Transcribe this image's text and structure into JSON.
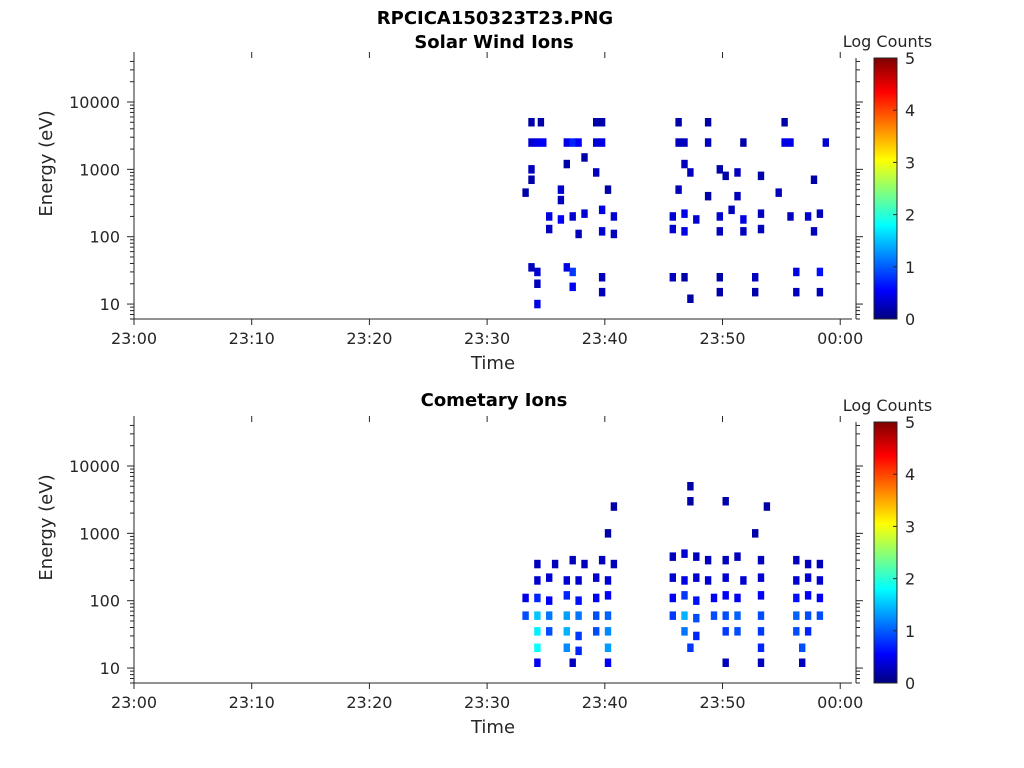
{
  "figure": {
    "title": "RPCICA150323T23.PNG"
  },
  "chart_data": [
    {
      "type": "heatmap",
      "title": "Solar Wind Ions",
      "xlabel": "Time",
      "ylabel": "Energy (eV)",
      "x_ticks": [
        "23:00",
        "23:10",
        "23:20",
        "23:30",
        "23:40",
        "23:50",
        "00:00"
      ],
      "xlim_minutes": [
        0,
        61
      ],
      "y_scale": "log",
      "y_ticks": [
        "10",
        "100",
        "1000",
        "10000"
      ],
      "ylim": [
        6,
        45000
      ],
      "colorbar": {
        "label": "Log Counts",
        "range": [
          0,
          5
        ],
        "ticks": [
          "0",
          "1",
          "2",
          "3",
          "4",
          "5"
        ],
        "colormap": "jet"
      },
      "cells": [
        [
          33.5,
          5000,
          0.2
        ],
        [
          34.3,
          5000,
          0.2
        ],
        [
          33.5,
          2500,
          0.4
        ],
        [
          34.0,
          2500,
          0.5
        ],
        [
          34.5,
          2500,
          0.6
        ],
        [
          36.5,
          2500,
          0.5
        ],
        [
          37.0,
          2500,
          0.8
        ],
        [
          37.5,
          2500,
          0.6
        ],
        [
          39.0,
          5000,
          0.2
        ],
        [
          39.5,
          5000,
          0.2
        ],
        [
          39.0,
          2500,
          0.4
        ],
        [
          39.5,
          2500,
          0.5
        ],
        [
          46.0,
          5000,
          0.2
        ],
        [
          46.0,
          2500,
          0.3
        ],
        [
          46.5,
          2500,
          0.3
        ],
        [
          48.5,
          5000,
          0.2
        ],
        [
          48.5,
          2500,
          0.3
        ],
        [
          51.5,
          2500,
          0.2
        ],
        [
          55.0,
          5000,
          0.2
        ],
        [
          55.0,
          2500,
          0.5
        ],
        [
          55.5,
          2500,
          0.5
        ],
        [
          58.5,
          2500,
          0.4
        ],
        [
          33.5,
          1000,
          0.3
        ],
        [
          33.5,
          700,
          0.2
        ],
        [
          36.5,
          1200,
          0.2
        ],
        [
          38.0,
          1500,
          0.2
        ],
        [
          39.0,
          900,
          0.3
        ],
        [
          46.5,
          1200,
          0.3
        ],
        [
          47.0,
          900,
          0.3
        ],
        [
          49.5,
          1000,
          0.2
        ],
        [
          50.0,
          800,
          0.2
        ],
        [
          51.0,
          900,
          0.3
        ],
        [
          53.0,
          800,
          0.2
        ],
        [
          57.5,
          700,
          0.2
        ],
        [
          33.0,
          450,
          0.2
        ],
        [
          36.0,
          500,
          0.4
        ],
        [
          36.0,
          350,
          0.3
        ],
        [
          40.0,
          500,
          0.2
        ],
        [
          46.0,
          500,
          0.3
        ],
        [
          48.5,
          400,
          0.2
        ],
        [
          51.0,
          400,
          0.3
        ],
        [
          54.5,
          450,
          0.3
        ],
        [
          35.0,
          200,
          0.5
        ],
        [
          36.0,
          180,
          0.6
        ],
        [
          37.0,
          200,
          0.4
        ],
        [
          38.0,
          220,
          0.4
        ],
        [
          39.5,
          250,
          0.5
        ],
        [
          40.5,
          200,
          0.4
        ],
        [
          45.5,
          200,
          0.4
        ],
        [
          46.5,
          220,
          0.5
        ],
        [
          47.5,
          180,
          0.4
        ],
        [
          49.5,
          200,
          0.4
        ],
        [
          50.5,
          250,
          0.3
        ],
        [
          51.5,
          180,
          0.5
        ],
        [
          53.0,
          220,
          0.3
        ],
        [
          55.5,
          200,
          0.3
        ],
        [
          57.0,
          200,
          0.4
        ],
        [
          58.0,
          220,
          0.3
        ],
        [
          35.0,
          130,
          0.3
        ],
        [
          37.5,
          110,
          0.3
        ],
        [
          39.5,
          120,
          0.4
        ],
        [
          40.5,
          110,
          0.3
        ],
        [
          45.5,
          130,
          0.4
        ],
        [
          46.5,
          120,
          0.5
        ],
        [
          49.5,
          120,
          0.3
        ],
        [
          51.5,
          120,
          0.3
        ],
        [
          53.0,
          130,
          0.3
        ],
        [
          57.5,
          120,
          0.3
        ],
        [
          33.5,
          35,
          0.3
        ],
        [
          34.0,
          30,
          0.4
        ],
        [
          34.0,
          20,
          0.3
        ],
        [
          34.0,
          10,
          0.5
        ],
        [
          36.5,
          35,
          0.5
        ],
        [
          37.0,
          30,
          0.9
        ],
        [
          37.0,
          18,
          0.6
        ],
        [
          39.5,
          25,
          0.3
        ],
        [
          39.5,
          15,
          0.3
        ],
        [
          45.5,
          25,
          0.3
        ],
        [
          46.5,
          25,
          0.2
        ],
        [
          47.0,
          12,
          0.2
        ],
        [
          49.5,
          25,
          0.2
        ],
        [
          49.5,
          15,
          0.2
        ],
        [
          52.5,
          25,
          0.3
        ],
        [
          52.5,
          15,
          0.2
        ],
        [
          56.0,
          30,
          0.5
        ],
        [
          56.0,
          15,
          0.3
        ],
        [
          58.0,
          30,
          0.7
        ],
        [
          58.0,
          15,
          0.3
        ]
      ]
    },
    {
      "type": "heatmap",
      "title": "Cometary Ions",
      "xlabel": "Time",
      "ylabel": "Energy (eV)",
      "x_ticks": [
        "23:00",
        "23:10",
        "23:20",
        "23:30",
        "23:40",
        "23:50",
        "00:00"
      ],
      "xlim_minutes": [
        0,
        61
      ],
      "y_scale": "log",
      "y_ticks": [
        "10",
        "100",
        "1000",
        "10000"
      ],
      "ylim": [
        6,
        45000
      ],
      "colorbar": {
        "label": "Log Counts",
        "range": [
          0,
          5
        ],
        "ticks": [
          "0",
          "1",
          "2",
          "3",
          "4",
          "5"
        ],
        "colormap": "jet"
      },
      "cells": [
        [
          40.5,
          2500,
          0.2
        ],
        [
          47.0,
          5000,
          0.2
        ],
        [
          47.0,
          3000,
          0.2
        ],
        [
          50.0,
          3000,
          0.2
        ],
        [
          53.5,
          2500,
          0.2
        ],
        [
          40.0,
          1000,
          0.2
        ],
        [
          52.5,
          1000,
          0.2
        ],
        [
          34.0,
          350,
          0.3
        ],
        [
          35.5,
          350,
          0.3
        ],
        [
          37.0,
          400,
          0.3
        ],
        [
          38.0,
          350,
          0.3
        ],
        [
          39.5,
          400,
          0.3
        ],
        [
          40.5,
          350,
          0.3
        ],
        [
          45.5,
          450,
          0.3
        ],
        [
          46.5,
          500,
          0.4
        ],
        [
          47.5,
          450,
          0.3
        ],
        [
          48.5,
          400,
          0.3
        ],
        [
          50.0,
          400,
          0.3
        ],
        [
          51.0,
          450,
          0.3
        ],
        [
          53.0,
          400,
          0.3
        ],
        [
          56.0,
          400,
          0.3
        ],
        [
          57.0,
          350,
          0.3
        ],
        [
          58.0,
          350,
          0.3
        ],
        [
          34.0,
          200,
          0.4
        ],
        [
          35.0,
          220,
          0.4
        ],
        [
          36.5,
          200,
          0.4
        ],
        [
          37.5,
          200,
          0.4
        ],
        [
          39.0,
          220,
          0.4
        ],
        [
          40.0,
          200,
          0.4
        ],
        [
          45.5,
          220,
          0.4
        ],
        [
          46.5,
          200,
          0.5
        ],
        [
          47.5,
          220,
          0.4
        ],
        [
          48.5,
          200,
          0.4
        ],
        [
          50.0,
          220,
          0.4
        ],
        [
          51.5,
          200,
          0.4
        ],
        [
          53.0,
          220,
          0.4
        ],
        [
          56.0,
          200,
          0.4
        ],
        [
          57.0,
          220,
          0.4
        ],
        [
          58.0,
          200,
          0.4
        ],
        [
          33.0,
          110,
          0.5
        ],
        [
          34.0,
          110,
          0.8
        ],
        [
          35.0,
          100,
          0.6
        ],
        [
          36.5,
          120,
          0.8
        ],
        [
          37.5,
          100,
          0.7
        ],
        [
          39.0,
          110,
          0.6
        ],
        [
          40.0,
          120,
          0.6
        ],
        [
          45.5,
          110,
          0.6
        ],
        [
          46.5,
          120,
          0.9
        ],
        [
          47.5,
          100,
          0.7
        ],
        [
          49.0,
          110,
          0.6
        ],
        [
          50.0,
          120,
          0.6
        ],
        [
          51.0,
          110,
          0.6
        ],
        [
          53.0,
          120,
          0.6
        ],
        [
          56.0,
          110,
          0.7
        ],
        [
          57.0,
          120,
          0.6
        ],
        [
          58.0,
          110,
          0.6
        ],
        [
          33.0,
          60,
          1.0
        ],
        [
          34.0,
          60,
          1.6
        ],
        [
          35.0,
          60,
          1.2
        ],
        [
          36.5,
          60,
          1.4
        ],
        [
          37.5,
          60,
          1.2
        ],
        [
          39.0,
          60,
          1.0
        ],
        [
          40.0,
          60,
          1.1
        ],
        [
          45.5,
          60,
          0.9
        ],
        [
          46.5,
          60,
          1.5
        ],
        [
          47.5,
          55,
          1.0
        ],
        [
          49.0,
          60,
          1.0
        ],
        [
          50.0,
          60,
          1.0
        ],
        [
          51.0,
          60,
          1.1
        ],
        [
          53.0,
          60,
          1.0
        ],
        [
          56.0,
          60,
          1.1
        ],
        [
          57.0,
          60,
          1.0
        ],
        [
          58.0,
          60,
          1.0
        ],
        [
          34.0,
          35,
          1.8
        ],
        [
          35.0,
          35,
          1.0
        ],
        [
          36.5,
          35,
          1.5
        ],
        [
          37.5,
          30,
          0.9
        ],
        [
          39.0,
          35,
          1.0
        ],
        [
          40.0,
          35,
          1.3
        ],
        [
          46.5,
          35,
          1.2
        ],
        [
          47.5,
          30,
          0.8
        ],
        [
          50.0,
          35,
          0.9
        ],
        [
          51.0,
          35,
          1.0
        ],
        [
          53.0,
          35,
          0.9
        ],
        [
          56.0,
          35,
          1.0
        ],
        [
          57.0,
          35,
          0.8
        ],
        [
          34.0,
          20,
          1.9
        ],
        [
          36.5,
          20,
          1.3
        ],
        [
          37.5,
          18,
          0.8
        ],
        [
          40.0,
          20,
          1.4
        ],
        [
          47.0,
          20,
          0.9
        ],
        [
          53.0,
          20,
          0.8
        ],
        [
          56.5,
          20,
          1.0
        ],
        [
          34.0,
          12,
          0.6
        ],
        [
          37.0,
          12,
          0.3
        ],
        [
          40.0,
          12,
          0.6
        ],
        [
          50.0,
          12,
          0.3
        ],
        [
          53.0,
          12,
          0.3
        ],
        [
          56.5,
          12,
          0.3
        ]
      ]
    }
  ]
}
